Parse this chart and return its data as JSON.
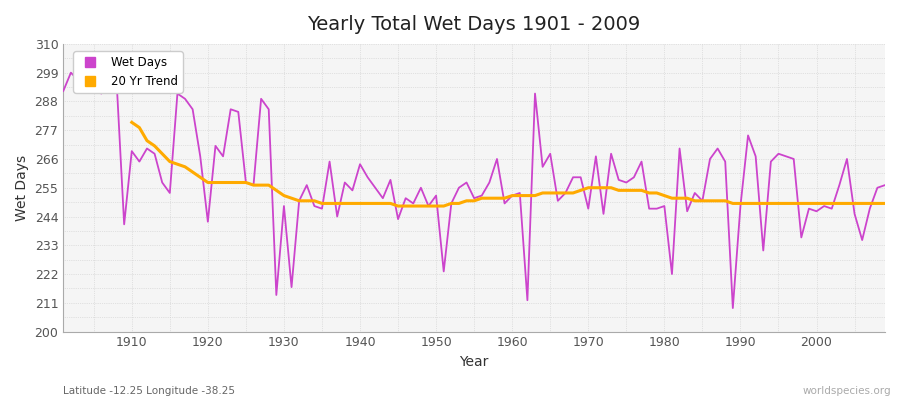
{
  "title": "Yearly Total Wet Days 1901 - 2009",
  "xlabel": "Year",
  "ylabel": "Wet Days",
  "subtitle": "Latitude -12.25 Longitude -38.25",
  "watermark": "worldspecies.org",
  "ylim": [
    200,
    310
  ],
  "yticks": [
    200,
    211,
    222,
    233,
    244,
    255,
    266,
    277,
    288,
    299,
    310
  ],
  "fig_bg": "#ffffff",
  "plot_bg": "#f5f5f5",
  "wet_days_color": "#cc44cc",
  "trend_color": "#ffaa00",
  "legend_labels": [
    "Wet Days",
    "20 Yr Trend"
  ],
  "years": [
    1901,
    1902,
    1903,
    1904,
    1905,
    1906,
    1907,
    1908,
    1909,
    1910,
    1911,
    1912,
    1913,
    1914,
    1915,
    1916,
    1917,
    1918,
    1919,
    1920,
    1921,
    1922,
    1923,
    1924,
    1925,
    1926,
    1927,
    1928,
    1929,
    1930,
    1931,
    1932,
    1933,
    1934,
    1935,
    1936,
    1937,
    1938,
    1939,
    1940,
    1941,
    1942,
    1943,
    1944,
    1945,
    1946,
    1947,
    1948,
    1949,
    1950,
    1951,
    1952,
    1953,
    1954,
    1955,
    1956,
    1957,
    1958,
    1959,
    1960,
    1961,
    1962,
    1963,
    1964,
    1965,
    1966,
    1967,
    1968,
    1969,
    1970,
    1971,
    1972,
    1973,
    1974,
    1975,
    1976,
    1977,
    1978,
    1979,
    1980,
    1981,
    1982,
    1983,
    1984,
    1985,
    1986,
    1987,
    1988,
    1989,
    1990,
    1991,
    1992,
    1993,
    1994,
    1995,
    1996,
    1997,
    1998,
    1999,
    2000,
    2001,
    2002,
    2003,
    2004,
    2005,
    2006,
    2007,
    2008,
    2009
  ],
  "wet_days": [
    292,
    299,
    296,
    299,
    293,
    291,
    298,
    296,
    241,
    269,
    265,
    270,
    268,
    257,
    253,
    291,
    289,
    285,
    267,
    242,
    271,
    267,
    285,
    284,
    257,
    256,
    289,
    285,
    214,
    248,
    217,
    250,
    256,
    248,
    247,
    265,
    244,
    257,
    254,
    264,
    259,
    255,
    251,
    258,
    243,
    251,
    249,
    255,
    248,
    252,
    223,
    249,
    255,
    257,
    251,
    252,
    257,
    266,
    249,
    252,
    253,
    212,
    291,
    263,
    268,
    250,
    253,
    259,
    259,
    247,
    267,
    245,
    268,
    258,
    257,
    259,
    265,
    247,
    247,
    248,
    222,
    270,
    246,
    253,
    250,
    266,
    270,
    265,
    209,
    248,
    275,
    267,
    231,
    265,
    268,
    267,
    266,
    236,
    247,
    246,
    248,
    247,
    256,
    266,
    245,
    235,
    247,
    255,
    256
  ],
  "trend_values": [
    null,
    null,
    null,
    null,
    null,
    null,
    null,
    null,
    null,
    280,
    278,
    273,
    271,
    268,
    265,
    264,
    263,
    261,
    259,
    257,
    257,
    257,
    257,
    257,
    257,
    256,
    256,
    256,
    254,
    252,
    251,
    250,
    250,
    250,
    249,
    249,
    249,
    249,
    249,
    249,
    249,
    249,
    249,
    249,
    248,
    248,
    248,
    248,
    248,
    248,
    248,
    249,
    249,
    250,
    250,
    251,
    251,
    251,
    251,
    252,
    252,
    252,
    252,
    253,
    253,
    253,
    253,
    253,
    254,
    255,
    255,
    255,
    255,
    254,
    254,
    254,
    254,
    253,
    253,
    252,
    251,
    251,
    251,
    250,
    250,
    250,
    250,
    250,
    249,
    249,
    249,
    249,
    249,
    249,
    249,
    249,
    249,
    249,
    249,
    249,
    249,
    249,
    249,
    249,
    249,
    249,
    249,
    249,
    249
  ]
}
